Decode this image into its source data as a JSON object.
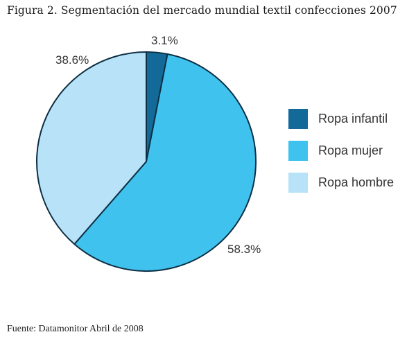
{
  "title": "Figura 2. Segmentación del mercado mundial textil confecciones 2007",
  "source": "Fuente: Datamonitor Abril de 2008",
  "legend": [
    {
      "label": "Ropa infantil",
      "color": "#136a98"
    },
    {
      "label": "Ropa mujer",
      "color": "#3fc3ee"
    },
    {
      "label": "Ropa hombre",
      "color": "#b8e2f7"
    }
  ],
  "labels": {
    "infantil": "3.1%",
    "mujer": "58.3%",
    "hombre": "38.6%"
  },
  "chart_data": {
    "type": "pie",
    "title": "Figura 2. Segmentación del mercado mundial textil confecciones 2007",
    "categories": [
      "Ropa infantil",
      "Ropa mujer",
      "Ropa hombre"
    ],
    "values": [
      3.1,
      58.3,
      38.6
    ],
    "unit": "%",
    "colors": [
      "#136a98",
      "#3fc3ee",
      "#b8e2f7"
    ],
    "start_angle": "12 o'clock, clockwise",
    "legend_position": "right",
    "source": "Fuente: Datamonitor Abril de 2008"
  }
}
